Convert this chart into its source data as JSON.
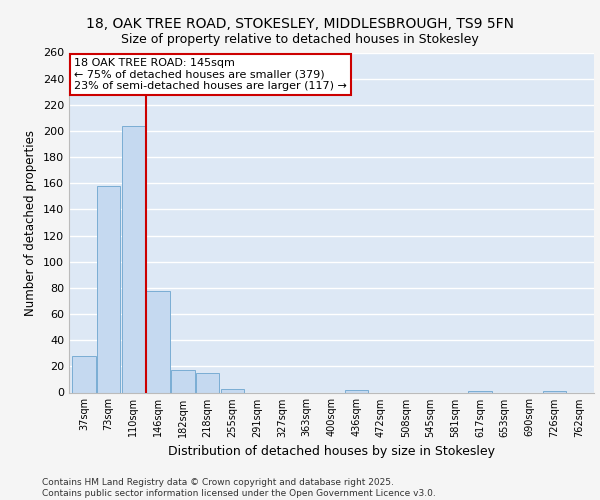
{
  "title_line1": "18, OAK TREE ROAD, STOKESLEY, MIDDLESBROUGH, TS9 5FN",
  "title_line2": "Size of property relative to detached houses in Stokesley",
  "xlabel": "Distribution of detached houses by size in Stokesley",
  "ylabel": "Number of detached properties",
  "categories": [
    "37sqm",
    "73sqm",
    "110sqm",
    "146sqm",
    "182sqm",
    "218sqm",
    "255sqm",
    "291sqm",
    "327sqm",
    "363sqm",
    "400sqm",
    "436sqm",
    "472sqm",
    "508sqm",
    "545sqm",
    "581sqm",
    "617sqm",
    "653sqm",
    "690sqm",
    "726sqm",
    "762sqm"
  ],
  "values": [
    28,
    158,
    204,
    78,
    17,
    15,
    3,
    0,
    0,
    0,
    0,
    2,
    0,
    0,
    0,
    0,
    1,
    0,
    0,
    1,
    0
  ],
  "bar_color": "#c5d9f0",
  "bar_edge_color": "#7aadd4",
  "background_color": "#dde8f5",
  "grid_color": "#ffffff",
  "red_line_x": 2.5,
  "annotation_text": "18 OAK TREE ROAD: 145sqm\n← 75% of detached houses are smaller (379)\n23% of semi-detached houses are larger (117) →",
  "annotation_box_color": "#ffffff",
  "annotation_box_edge_color": "#cc0000",
  "ylim": [
    0,
    260
  ],
  "yticks": [
    0,
    20,
    40,
    60,
    80,
    100,
    120,
    140,
    160,
    180,
    200,
    220,
    240,
    260
  ],
  "footer_line1": "Contains HM Land Registry data © Crown copyright and database right 2025.",
  "footer_line2": "Contains public sector information licensed under the Open Government Licence v3.0.",
  "red_line_color": "#cc0000",
  "fig_bg": "#f5f5f5"
}
